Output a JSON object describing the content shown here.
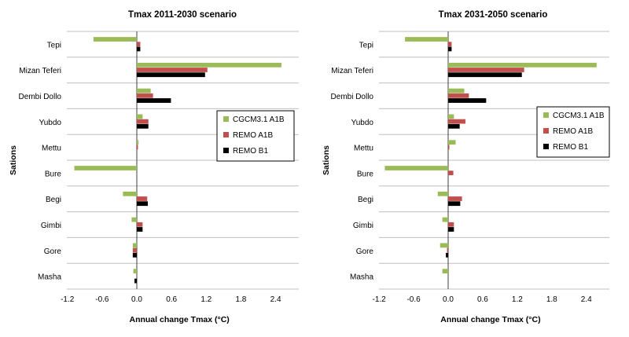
{
  "chart_data": [
    {
      "type": "bar",
      "orientation": "horizontal",
      "title": "Tmax 2011-2030 scenario",
      "xlabel": "Annual change Tmax (°C)",
      "ylabel": "Sations",
      "categories": [
        "Tepi",
        "Mizan Teferi",
        "Dembi Dollo",
        "Yubdo",
        "Mettu",
        "Bure",
        "Begi",
        "Gimbi",
        "Gore",
        "Masha"
      ],
      "xlim": [
        -1.2,
        2.8
      ],
      "xticks": [
        -1.2,
        -0.6,
        0.0,
        0.6,
        1.2,
        1.8,
        2.4
      ],
      "xtick_labels": [
        "-1.2",
        "-0.6",
        "0.0",
        "0.6",
        "1.2",
        "1.8",
        "2.4"
      ],
      "legend_position": "right",
      "series": [
        {
          "name": "CGCM3.1 A1B",
          "color": "#9bbb59",
          "values": [
            -0.75,
            2.5,
            0.24,
            0.1,
            0.03,
            -1.08,
            -0.24,
            -0.09,
            -0.07,
            -0.06
          ]
        },
        {
          "name": "REMO A1B",
          "color": "#c0504d",
          "values": [
            0.06,
            1.22,
            0.28,
            0.2,
            0.02,
            0.0,
            0.18,
            0.1,
            -0.07,
            0.0
          ]
        },
        {
          "name": "REMO B1",
          "color": "#000000",
          "values": [
            0.06,
            1.18,
            0.59,
            0.2,
            0.0,
            0.0,
            0.19,
            0.1,
            -0.07,
            -0.04
          ]
        }
      ]
    },
    {
      "type": "bar",
      "orientation": "horizontal",
      "title": "Tmax 2031-2050 scenario",
      "xlabel": "Annual change Tmax (°C)",
      "ylabel": "Sations",
      "categories": [
        "Tepi",
        "Mizan Teferi",
        "Dembi Dollo",
        "Yubdo",
        "Mettu",
        "Bure",
        "Begi",
        "Gimbi",
        "Gore",
        "Masha"
      ],
      "xlim": [
        -1.2,
        2.8
      ],
      "xticks": [
        -1.2,
        -0.6,
        0.0,
        0.6,
        1.2,
        1.8,
        2.4
      ],
      "xtick_labels": [
        "-1.2",
        "-0.6",
        "0.0",
        "0.6",
        "1.2",
        "1.8",
        "2.4"
      ],
      "legend_position": "right",
      "series": [
        {
          "name": "CGCM3.1 A1B",
          "color": "#9bbb59",
          "values": [
            -0.75,
            2.58,
            0.28,
            0.1,
            0.13,
            -1.1,
            -0.18,
            -0.1,
            -0.14,
            -0.1
          ]
        },
        {
          "name": "REMO A1B",
          "color": "#c0504d",
          "values": [
            0.06,
            1.32,
            0.36,
            0.3,
            0.02,
            0.09,
            0.24,
            0.1,
            -0.02,
            0.0
          ]
        },
        {
          "name": "REMO B1",
          "color": "#000000",
          "values": [
            0.06,
            1.28,
            0.66,
            0.2,
            0.0,
            0.0,
            0.21,
            0.1,
            -0.04,
            0.0
          ]
        }
      ]
    }
  ]
}
